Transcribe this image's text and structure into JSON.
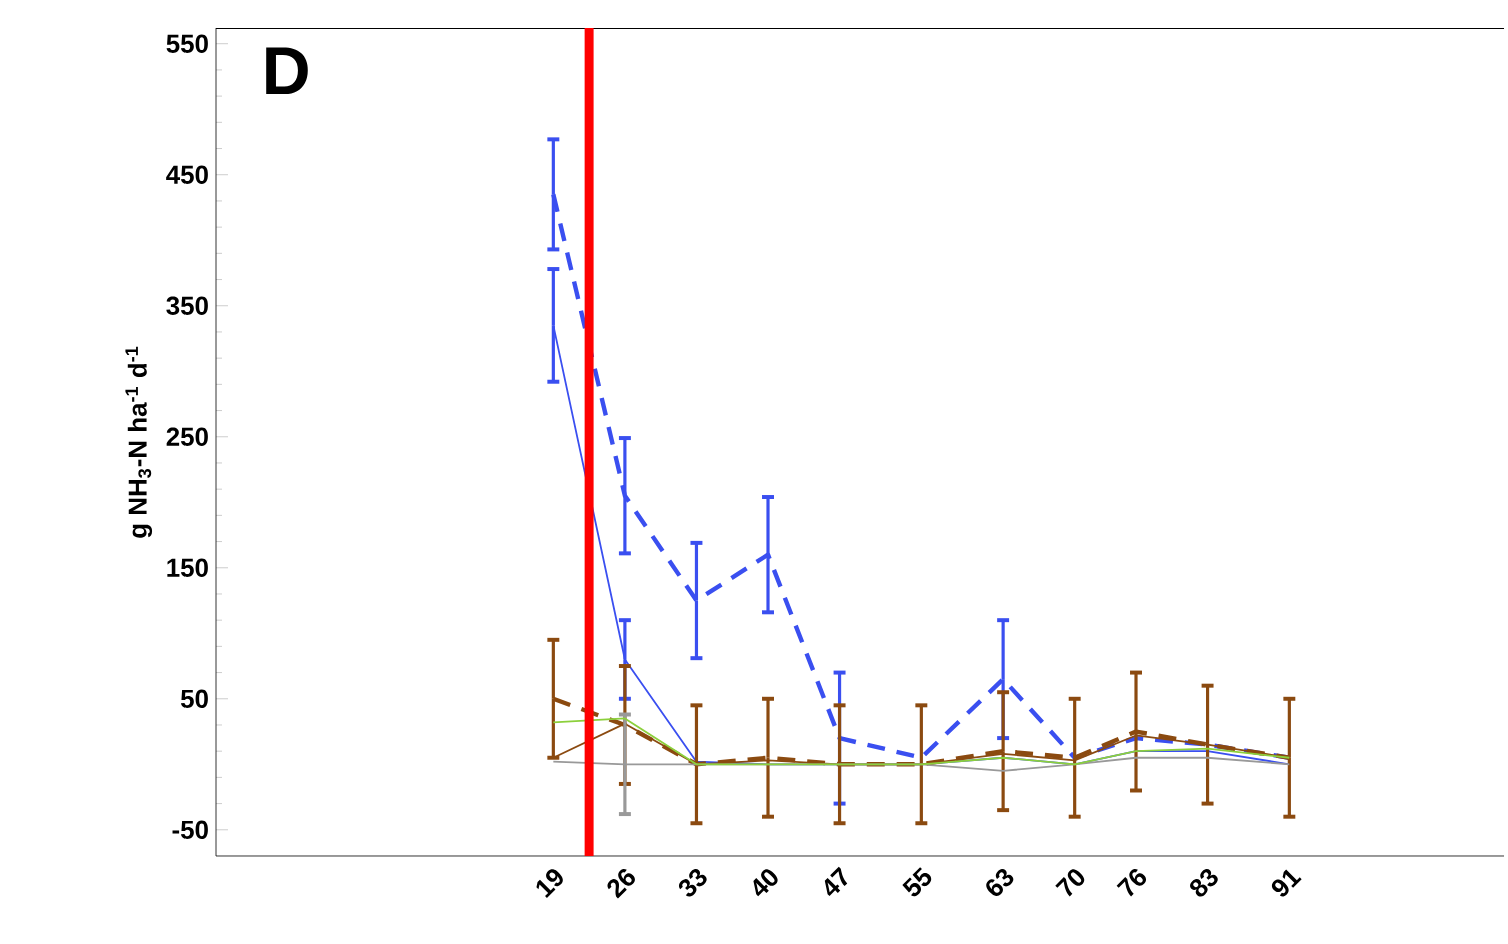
{
  "chart_data": {
    "type": "line",
    "title": "D",
    "ylabel": "g NH$_{3}$-N ha$^{-1}$ d$^{-1}$",
    "x": [
      19,
      26,
      33,
      40,
      47,
      55,
      63,
      70,
      76,
      83,
      91
    ],
    "xlim": [
      -14,
      112
    ],
    "xticks": [
      19,
      26,
      33,
      40,
      47,
      55,
      63,
      70,
      76,
      83,
      91
    ],
    "ylim": [
      -70,
      562
    ],
    "yticks": [
      -50,
      50,
      150,
      250,
      350,
      450,
      550
    ],
    "grid": false,
    "marker": "none",
    "ref_lines": [
      {
        "axis": "x",
        "value": 22.5,
        "color": "#ff0000"
      }
    ],
    "series": [
      {
        "color": "#3a4ff0",
        "line_style": "dashed",
        "values": [
          435,
          205,
          125,
          160,
          20,
          5,
          65,
          5,
          20,
          15,
          5
        ],
        "errors": [
          42,
          44,
          44,
          44,
          50,
          null,
          45,
          null,
          null,
          null,
          null
        ]
      },
      {
        "color": "#3a4ff0",
        "line_style": "solid",
        "values": [
          335,
          80,
          2,
          0,
          0,
          0,
          5,
          0,
          10,
          10,
          0
        ],
        "errors": [
          43,
          30,
          null,
          null,
          null,
          null,
          null,
          null,
          null,
          null,
          null
        ]
      },
      {
        "color": "#8b4a10",
        "line_style": "dashed",
        "values": [
          50,
          30,
          0,
          5,
          0,
          0,
          10,
          5,
          25,
          15,
          5
        ],
        "errors": [
          45,
          45,
          45,
          45,
          45,
          45,
          45,
          45,
          45,
          45,
          45
        ]
      },
      {
        "color": "#8b4a10",
        "line_style": "solid",
        "values": [
          5,
          31,
          0,
          3,
          0,
          0,
          8,
          3,
          22,
          15,
          5
        ]
      },
      {
        "color": "#999999",
        "line_style": "solid",
        "values": [
          2,
          0,
          0,
          0,
          0,
          0,
          -5,
          0,
          5,
          5,
          0
        ],
        "errors": [
          null,
          38,
          null,
          null,
          null,
          null,
          null,
          null,
          null,
          null,
          null
        ]
      },
      {
        "color": "#8cd03c",
        "line_style": "solid",
        "values": [
          32,
          35,
          0,
          0,
          0,
          0,
          5,
          0,
          10,
          12,
          5
        ]
      }
    ]
  }
}
